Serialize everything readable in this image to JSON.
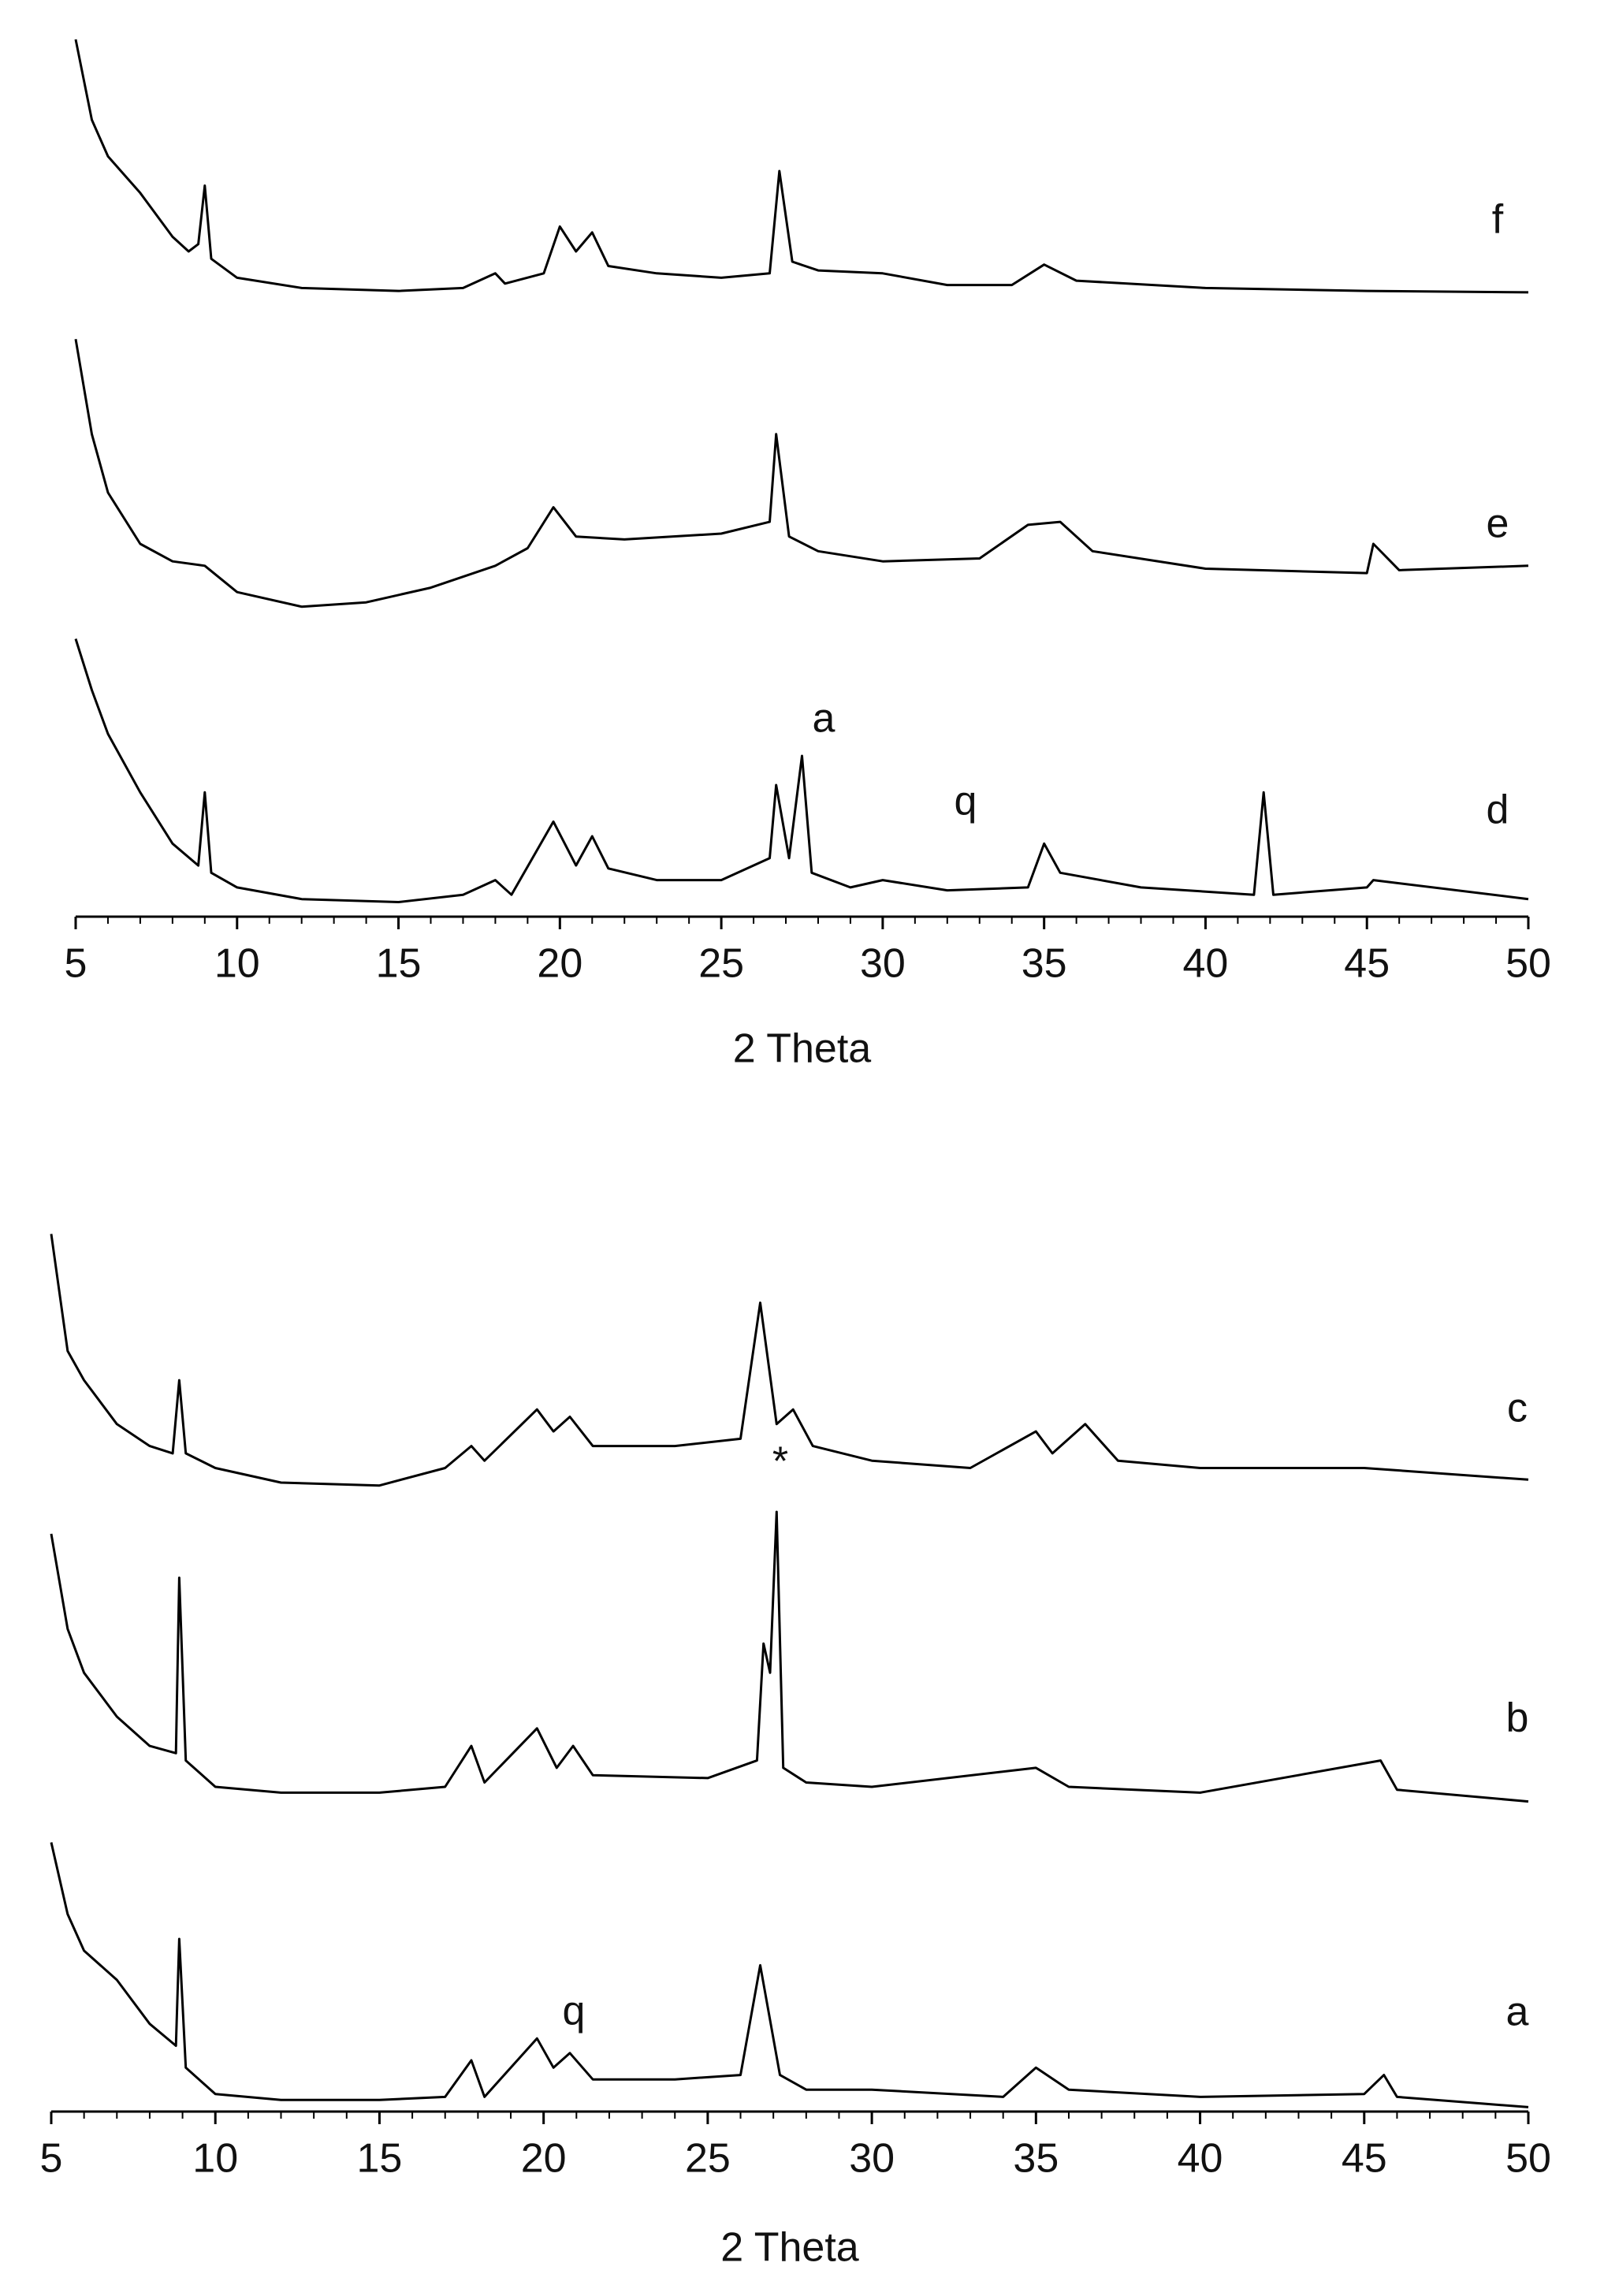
{
  "chart_data": [
    {
      "type": "line",
      "x_label": "2 Theta",
      "xlim": [
        5,
        50
      ],
      "ylim": [
        0,
        600
      ],
      "xticks": [
        5,
        10,
        15,
        20,
        25,
        30,
        35,
        40,
        45,
        50
      ],
      "xminorticks": [
        6,
        7,
        8,
        9,
        11,
        12,
        13,
        14,
        16,
        17,
        18,
        19,
        21,
        22,
        23,
        24,
        26,
        27,
        28,
        29,
        31,
        32,
        33,
        34,
        36,
        37,
        38,
        39,
        41,
        42,
        43,
        44,
        46,
        47,
        48,
        49
      ],
      "annotations": [
        "q",
        "a"
      ],
      "series": [
        {
          "name": "f",
          "color": "#000000",
          "x": [
            5,
            5.5,
            6,
            7,
            8,
            8.5,
            8.8,
            9,
            9.2,
            10,
            12,
            15,
            17,
            18,
            18.3,
            19.5,
            20,
            20.5,
            21,
            21.5,
            23,
            25,
            26.5,
            26.8,
            27.2,
            28,
            30,
            32,
            34,
            35,
            36,
            40,
            45,
            50
          ],
          "values": [
            600,
            545,
            520,
            495,
            465,
            455,
            460,
            500,
            450,
            437,
            430,
            428,
            430,
            440,
            433,
            440,
            472,
            455,
            468,
            445,
            440,
            437,
            440,
            510,
            448,
            442,
            440,
            432,
            432,
            446,
            435,
            430,
            428,
            427
          ]
        },
        {
          "name": "e",
          "color": "#000000",
          "x": [
            5,
            5.5,
            6,
            7,
            8,
            9,
            10,
            12,
            14,
            16,
            18,
            19,
            19.8,
            20.5,
            22,
            25,
            26.5,
            26.7,
            27.1,
            28,
            30,
            33,
            34.5,
            35.5,
            36.5,
            40,
            45,
            45.2,
            46,
            50
          ],
          "values": [
            395,
            330,
            290,
            255,
            243,
            240,
            222,
            212,
            215,
            225,
            240,
            252,
            280,
            260,
            258,
            262,
            270,
            330,
            260,
            250,
            243,
            245,
            268,
            270,
            250,
            238,
            235,
            255,
            237,
            240
          ]
        },
        {
          "name": "d",
          "color": "#000000",
          "x": [
            5,
            5.5,
            6,
            7,
            8,
            8.8,
            9,
            9.2,
            10,
            12,
            15,
            17,
            18,
            18.5,
            19.8,
            20.5,
            21,
            21.5,
            23,
            25,
            26.5,
            26.7,
            27.1,
            27.5,
            27.8,
            29,
            30,
            32,
            34.5,
            35,
            35.5,
            38,
            41.5,
            41.8,
            42.1,
            45,
            45.2,
            50
          ],
          "values": [
            190,
            155,
            125,
            85,
            50,
            35,
            85,
            30,
            20,
            12,
            10,
            15,
            25,
            15,
            65,
            35,
            55,
            33,
            25,
            25,
            40,
            90,
            40,
            110,
            30,
            20,
            25,
            18,
            20,
            50,
            30,
            20,
            15,
            85,
            15,
            20,
            25,
            12
          ]
        }
      ]
    },
    {
      "type": "line",
      "x_label": "2 Theta",
      "xlim": [
        5,
        50
      ],
      "ylim": [
        0,
        610
      ],
      "xticks": [
        5,
        10,
        15,
        20,
        25,
        30,
        35,
        40,
        45,
        50
      ],
      "xminorticks": [
        6,
        7,
        8,
        9,
        11,
        12,
        13,
        14,
        16,
        17,
        18,
        19,
        21,
        22,
        23,
        24,
        26,
        27,
        28,
        29,
        31,
        32,
        33,
        34,
        36,
        37,
        38,
        39,
        41,
        42,
        43,
        44,
        46,
        47,
        48,
        49
      ],
      "annotations": [
        "q",
        "*"
      ],
      "series": [
        {
          "name": "c",
          "color": "#000000",
          "x": [
            5,
            5.5,
            6,
            7,
            8,
            8.7,
            8.9,
            9.1,
            10,
            12,
            15,
            17,
            17.8,
            18.2,
            19.8,
            20.3,
            20.8,
            21.5,
            24,
            26,
            26.6,
            27.1,
            27.6,
            28.2,
            30,
            33,
            35,
            35.5,
            36.5,
            37.5,
            40,
            45,
            50
          ],
          "values": [
            600,
            520,
            500,
            470,
            455,
            450,
            500,
            450,
            440,
            430,
            428,
            440,
            455,
            445,
            480,
            465,
            475,
            455,
            455,
            460,
            553,
            470,
            480,
            455,
            445,
            440,
            465,
            450,
            470,
            445,
            440,
            440,
            432
          ]
        },
        {
          "name": "b",
          "color": "#000000",
          "x": [
            5,
            5.5,
            6,
            7,
            8,
            8.8,
            8.9,
            9.1,
            10,
            12,
            15,
            17,
            17.8,
            18.2,
            19.8,
            20.4,
            20.9,
            21.5,
            25,
            26.5,
            26.7,
            26.9,
            27.1,
            27.3,
            28,
            30,
            35,
            36,
            40,
            45.5,
            46,
            50
          ],
          "values": [
            395,
            330,
            300,
            270,
            250,
            245,
            365,
            240,
            222,
            218,
            218,
            222,
            250,
            225,
            262,
            235,
            250,
            230,
            228,
            240,
            320,
            300,
            410,
            235,
            225,
            222,
            235,
            222,
            218,
            240,
            220,
            212
          ]
        },
        {
          "name": "a",
          "color": "#000000",
          "x": [
            5,
            5.5,
            6,
            7,
            8,
            8.8,
            8.9,
            9.1,
            10,
            12,
            15,
            17,
            17.8,
            18.2,
            19.8,
            20.3,
            20.8,
            21.5,
            24,
            26,
            26.6,
            27.2,
            28,
            30,
            34,
            35,
            36,
            40,
            45,
            45.6,
            46,
            50
          ],
          "values": [
            184,
            135,
            110,
            90,
            60,
            45,
            118,
            30,
            12,
            8,
            8,
            10,
            35,
            10,
            50,
            30,
            40,
            22,
            22,
            25,
            100,
            25,
            15,
            15,
            10,
            30,
            15,
            10,
            12,
            25,
            10,
            3
          ]
        }
      ]
    }
  ]
}
